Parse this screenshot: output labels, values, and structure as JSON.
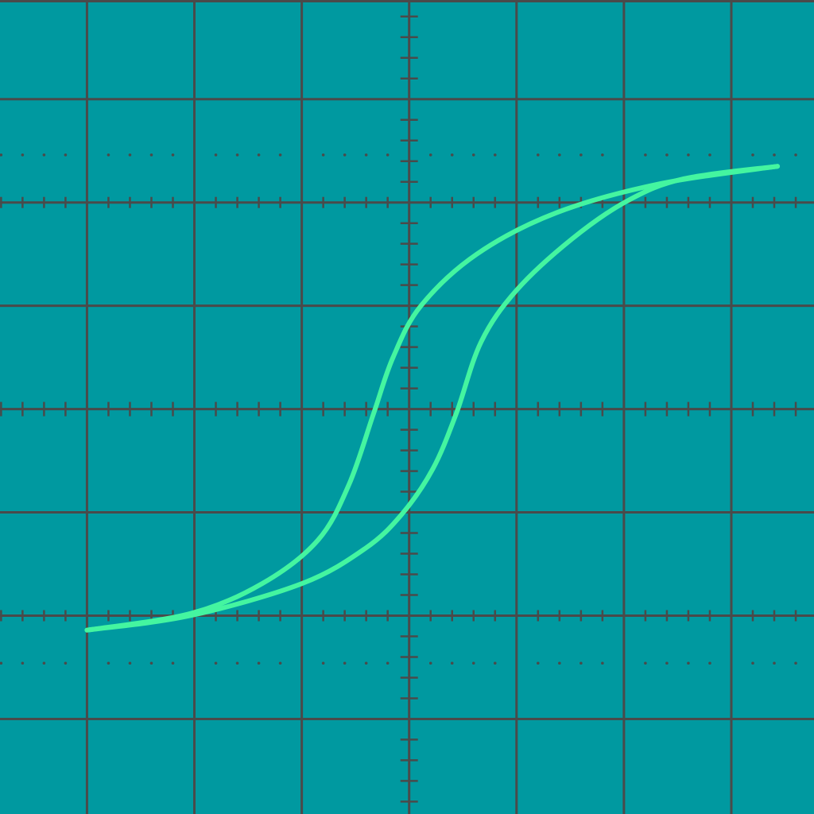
{
  "chart_data": {
    "type": "line",
    "xlim": [
      -3.81,
      3.77
    ],
    "ylim": [
      -3.92,
      3.96
    ],
    "xticks": [
      -3,
      -2,
      -1,
      0,
      1,
      2,
      3
    ],
    "yticks": [
      -3,
      -2,
      -1,
      0,
      1,
      2,
      3
    ],
    "grid": true,
    "series": [
      {
        "color": "#44f5a0",
        "x": [
          -3.0,
          -2.04,
          -1.37,
          -0.85,
          -0.56,
          -0.33,
          -0.15,
          0.11,
          0.63,
          1.37,
          2.33,
          3.43
        ],
        "values": [
          -2.14,
          -1.98,
          -1.69,
          -1.27,
          -0.73,
          -0.04,
          0.5,
          1.0,
          1.5,
          1.9,
          2.18,
          2.35
        ]
      },
      {
        "color": "#44f5a0",
        "x": [
          -3.0,
          -2.04,
          -1.0,
          -0.41,
          -0.07,
          0.22,
          0.44,
          0.67,
          1.0,
          1.52,
          2.04,
          2.56,
          3.43
        ],
        "values": [
          -2.14,
          -2.0,
          -1.69,
          -1.35,
          -1.02,
          -0.58,
          -0.04,
          0.65,
          1.15,
          1.65,
          2.02,
          2.23,
          2.35
        ]
      }
    ]
  }
}
